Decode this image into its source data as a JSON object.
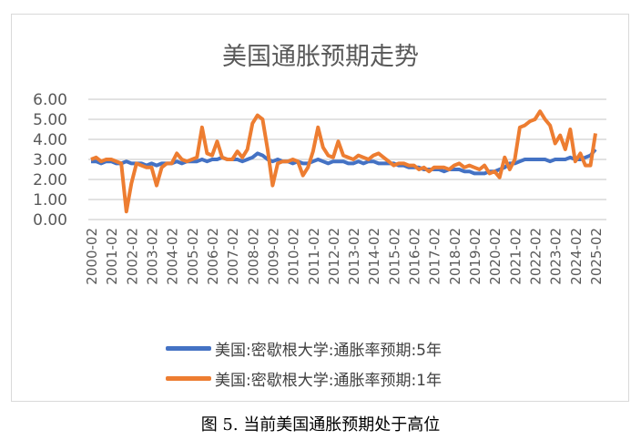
{
  "chart_data": {
    "type": "line",
    "title": "美国通胀预期走势",
    "caption": "图 5. 当前美国通胀预期处于高位",
    "ylim": [
      0,
      6
    ],
    "yticks": [
      "0.00",
      "1.00",
      "2.00",
      "3.00",
      "4.00",
      "5.00",
      "6.00"
    ],
    "xticks": [
      "2000-02",
      "2001-02",
      "2002-02",
      "2003-02",
      "2004-02",
      "2005-02",
      "2006-02",
      "2007-02",
      "2008-02",
      "2009-02",
      "2010-02",
      "2011-02",
      "2012-02",
      "2013-02",
      "2014-02",
      "2015-02",
      "2016-02",
      "2017-02",
      "2018-02",
      "2019-02",
      "2020-02",
      "2021-02",
      "2022-02",
      "2023-02",
      "2024-02",
      "2025-02"
    ],
    "x_note": "quarterly samples from 2000-02 to 2025-02",
    "legend_position": "bottom",
    "series": [
      {
        "name": "美国:密歇根大学:通胀率预期:5年",
        "color": "#4472C4",
        "values": [
          2.9,
          2.9,
          2.8,
          2.9,
          2.9,
          2.8,
          2.8,
          2.9,
          2.8,
          2.8,
          2.8,
          2.7,
          2.8,
          2.7,
          2.8,
          2.8,
          2.8,
          2.9,
          2.8,
          2.9,
          2.9,
          2.9,
          3.0,
          2.9,
          3.0,
          3.0,
          3.1,
          3.0,
          3.0,
          3.0,
          2.9,
          3.0,
          3.1,
          3.3,
          3.2,
          3.0,
          2.9,
          3.0,
          2.9,
          2.9,
          2.8,
          2.9,
          2.8,
          2.8,
          2.9,
          3.0,
          2.9,
          2.8,
          2.9,
          2.9,
          2.9,
          2.8,
          2.8,
          2.9,
          2.8,
          2.9,
          2.9,
          2.8,
          2.8,
          2.8,
          2.8,
          2.7,
          2.7,
          2.6,
          2.6,
          2.6,
          2.5,
          2.5,
          2.5,
          2.5,
          2.4,
          2.5,
          2.5,
          2.5,
          2.4,
          2.4,
          2.3,
          2.3,
          2.3,
          2.4,
          2.4,
          2.5,
          2.6,
          2.8,
          2.8,
          2.9,
          3.0,
          3.0,
          3.0,
          3.0,
          3.0,
          2.9,
          3.0,
          3.0,
          3.0,
          3.1,
          3.0,
          3.0,
          3.1,
          3.2,
          3.5
        ]
      },
      {
        "name": "美国:密歇根大学:通胀率预期:1年",
        "color": "#ED7D31",
        "values": [
          3.0,
          3.1,
          2.9,
          3.0,
          3.0,
          2.9,
          2.8,
          0.4,
          1.8,
          2.8,
          2.7,
          2.6,
          2.6,
          1.7,
          2.6,
          2.8,
          2.8,
          3.3,
          3.0,
          2.9,
          3.0,
          3.1,
          4.6,
          3.3,
          3.2,
          3.9,
          3.1,
          3.0,
          3.0,
          3.4,
          3.1,
          3.5,
          4.8,
          5.2,
          5.0,
          3.5,
          1.7,
          2.8,
          2.9,
          2.9,
          3.0,
          2.9,
          2.2,
          2.6,
          3.4,
          4.6,
          3.6,
          3.2,
          3.1,
          3.9,
          3.2,
          3.1,
          3.0,
          3.2,
          3.1,
          3.0,
          3.2,
          3.3,
          3.1,
          2.9,
          2.7,
          2.8,
          2.8,
          2.7,
          2.7,
          2.5,
          2.6,
          2.4,
          2.6,
          2.6,
          2.6,
          2.5,
          2.7,
          2.8,
          2.6,
          2.7,
          2.6,
          2.5,
          2.7,
          2.3,
          2.4,
          2.1,
          3.1,
          2.5,
          3.0,
          4.6,
          4.7,
          4.9,
          5.0,
          5.4,
          5.0,
          4.7,
          3.8,
          4.2,
          3.5,
          4.5,
          2.9,
          3.3,
          2.7,
          2.7,
          4.3
        ]
      }
    ]
  }
}
